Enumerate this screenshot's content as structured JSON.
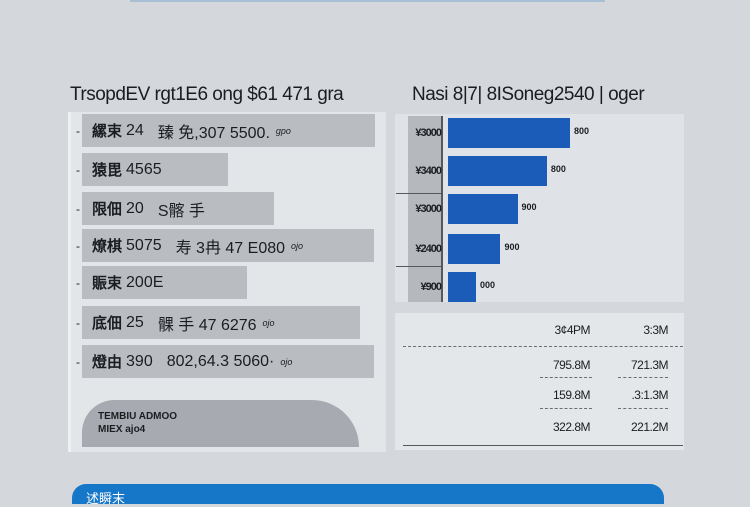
{
  "left": {
    "title": "TrsopdEV rgt1E6 ong $61 471 gra",
    "rows": [
      {
        "key": "縲束",
        "a": "24",
        "b": "臻 免,307 5500.",
        "unit": "gpo"
      },
      {
        "key": "猿毘",
        "a": "4565",
        "b": "",
        "unit": ""
      },
      {
        "key": "限佃",
        "a": "20",
        "b": "S髂 手",
        "unit": ""
      },
      {
        "key": "燎棋",
        "a": "5075",
        "b": "寿 3冉 47 E080",
        "unit": "ojo"
      },
      {
        "key": "賑束",
        "a": "200E",
        "b": "",
        "unit": ""
      },
      {
        "key": "底佃",
        "a": "25",
        "b": "髁 手 47 6276",
        "unit": "ojo"
      },
      {
        "key": "燈由",
        "a": "390",
        "b": "802,64.3 5060·",
        "unit": "ojo"
      }
    ],
    "summary": {
      "line1": "TEMBIU ADMOO",
      "line2": "MIEX ajo4"
    }
  },
  "right": {
    "title": "Nasi 8|7| 8ISoneg2540 | oger",
    "chart_data": {
      "type": "bar",
      "orientation": "horizontal",
      "categories": [
        "¥3000",
        "¥3400",
        "¥3000",
        "¥2400",
        "¥900"
      ],
      "values": [
        100,
        81,
        57,
        43,
        23
      ],
      "labels": [
        "800",
        "800",
        "900",
        "900",
        "000"
      ],
      "color": "#1b5cb8"
    },
    "table": {
      "header": [
        "3¢4PM",
        "3:3M"
      ],
      "rows": [
        [
          "795.8M",
          "721.3M"
        ],
        [
          "159.8M",
          ".3:1.3M"
        ],
        [
          "322.8M",
          "221.2M"
        ]
      ]
    }
  },
  "footer": {
    "label": "述瞬末"
  }
}
